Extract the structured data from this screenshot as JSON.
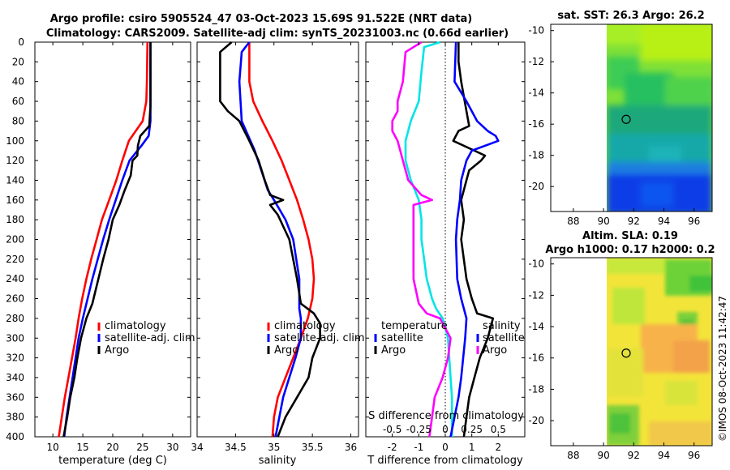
{
  "title_line1": "Argo profile: csiro 5905524_47 03-Oct-2023 15.69S 91.522E (NRT data)",
  "title_line2": "Climatology: CARS2009. Satellite-adj clim: synTS_20231003.nc (0.66d earlier)",
  "copyright": "©IMOS 08-Oct-2023 11:42:47",
  "colors": {
    "climatology": "#ff0000",
    "satellite": "#0000ff",
    "argo": "#000000",
    "temp_diff": "#00e5e5",
    "sal_diff": "#ff00ff"
  },
  "legend_left": [
    "climatology",
    "satellite-adj. clim",
    "Argo"
  ],
  "legend_diff_temp": [
    "temperature",
    "satellite",
    "Argo"
  ],
  "legend_diff_sal": [
    "salinity",
    "satellite",
    "Argo"
  ],
  "chart_data": [
    {
      "id": "temperature",
      "type": "line",
      "xlabel": "temperature (deg C)",
      "ylabel": "",
      "xlim": [
        7,
        33
      ],
      "ylim": [
        0,
        400
      ],
      "xticks": [
        10,
        15,
        20,
        25,
        30
      ],
      "yticks": [
        0,
        20,
        40,
        60,
        80,
        100,
        120,
        140,
        160,
        180,
        200,
        220,
        240,
        260,
        280,
        300,
        320,
        340,
        360,
        380,
        400
      ],
      "series": [
        {
          "name": "climatology",
          "color": "#ff0000",
          "depth": [
            0,
            40,
            60,
            80,
            100,
            120,
            140,
            160,
            180,
            200,
            220,
            240,
            260,
            280,
            300,
            320,
            340,
            360,
            380,
            400
          ],
          "values": [
            25.8,
            25.7,
            25.6,
            25.0,
            22.7,
            21.6,
            20.6,
            19.4,
            18.2,
            17.3,
            16.4,
            15.6,
            14.9,
            14.3,
            13.8,
            13.2,
            12.6,
            12.0,
            11.5,
            11.0
          ]
        },
        {
          "name": "satellite-adj. clim",
          "color": "#0000ff",
          "depth": [
            0,
            40,
            80,
            95,
            105,
            120,
            140,
            160,
            180,
            200,
            220,
            240,
            260,
            280,
            300,
            320,
            340,
            360,
            380,
            400
          ],
          "values": [
            26.3,
            26.3,
            26.3,
            26.0,
            24.8,
            22.8,
            21.6,
            20.5,
            19.4,
            18.4,
            17.5,
            16.6,
            15.8,
            15.0,
            14.3,
            13.8,
            13.3,
            12.8,
            12.3,
            11.9
          ]
        },
        {
          "name": "Argo",
          "color": "#000000",
          "depth": [
            0,
            65,
            85,
            95,
            105,
            115,
            120,
            135,
            150,
            165,
            180,
            200,
            220,
            240,
            250,
            265,
            280,
            300,
            320,
            340,
            360,
            380,
            400
          ],
          "values": [
            26.3,
            26.3,
            26.1,
            24.6,
            24.2,
            24.1,
            23.3,
            23.0,
            22.0,
            21.1,
            20.0,
            19.3,
            18.4,
            17.6,
            17.2,
            16.6,
            15.6,
            14.7,
            14.1,
            13.6,
            12.9,
            12.4,
            11.8
          ]
        }
      ]
    },
    {
      "id": "salinity",
      "type": "line",
      "xlabel": "salinity",
      "ylabel": "",
      "xlim": [
        34,
        36.1
      ],
      "ylim": [
        0,
        400
      ],
      "xticks": [
        34,
        34.5,
        35,
        35.5,
        36
      ],
      "series": [
        {
          "name": "climatology",
          "color": "#ff0000",
          "depth": [
            0,
            40,
            60,
            80,
            100,
            120,
            140,
            160,
            180,
            200,
            220,
            240,
            260,
            280,
            300,
            320,
            340,
            360,
            380,
            400
          ],
          "values": [
            34.68,
            34.68,
            34.73,
            34.85,
            34.98,
            35.1,
            35.2,
            35.3,
            35.38,
            35.45,
            35.5,
            35.52,
            35.5,
            35.44,
            35.35,
            35.25,
            35.15,
            35.05,
            35.0,
            34.98
          ]
        },
        {
          "name": "satellite-adj. clim",
          "color": "#0000ff",
          "depth": [
            0,
            10,
            40,
            80,
            110,
            150,
            160,
            180,
            200,
            240,
            270,
            280,
            300,
            320,
            340,
            360,
            380,
            400
          ],
          "values": [
            34.68,
            34.58,
            34.55,
            34.58,
            34.75,
            34.92,
            35.0,
            35.15,
            35.25,
            35.33,
            35.33,
            35.35,
            35.35,
            35.28,
            35.2,
            35.12,
            35.07,
            35.02
          ]
        },
        {
          "name": "Argo",
          "color": "#000000",
          "depth": [
            0,
            10,
            30,
            60,
            70,
            80,
            100,
            120,
            140,
            155,
            160,
            165,
            175,
            200,
            240,
            265,
            275,
            285,
            300,
            320,
            340,
            360,
            380,
            400
          ],
          "values": [
            34.45,
            34.3,
            34.3,
            34.3,
            34.4,
            34.55,
            34.68,
            34.8,
            34.88,
            34.95,
            35.12,
            34.95,
            35.05,
            35.2,
            35.3,
            35.35,
            35.52,
            35.6,
            35.6,
            35.5,
            35.45,
            35.3,
            35.15,
            35.05
          ]
        }
      ]
    },
    {
      "id": "differences",
      "type": "line",
      "xlabel": "T difference from climatology",
      "x2label": "S difference from climatology",
      "xlim": [
        -3,
        3
      ],
      "ylim": [
        0,
        400
      ],
      "xticks": [
        -2,
        -1,
        0,
        1,
        2
      ],
      "x2ticks": [
        "-0.5",
        "-0.25",
        "0",
        "0.25",
        "0.5"
      ],
      "series": [
        {
          "name": "temperature satellite",
          "color": "#00e5e5",
          "depth": [
            0,
            5,
            30,
            60,
            80,
            100,
            120,
            140,
            160,
            180,
            200,
            220,
            240,
            260,
            270,
            280,
            300,
            320,
            340,
            360,
            380,
            400
          ],
          "values": [
            -0.2,
            -0.8,
            -0.9,
            -1.0,
            -1.3,
            -1.5,
            -1.5,
            -1.3,
            -1.0,
            -0.9,
            -0.9,
            -0.8,
            -0.7,
            -0.5,
            -0.35,
            -0.1,
            0.1,
            0.15,
            0.2,
            0.25,
            0.25,
            0.25
          ]
        },
        {
          "name": "temperature Argo",
          "color": "#000000",
          "depth": [
            0,
            20,
            40,
            70,
            85,
            90,
            100,
            115,
            120,
            130,
            140,
            160,
            180,
            200,
            240,
            260,
            275,
            280,
            300,
            320,
            340,
            360,
            380,
            400
          ],
          "values": [
            0.5,
            0.5,
            0.6,
            0.8,
            0.9,
            0.5,
            0.3,
            1.5,
            1.35,
            0.9,
            0.8,
            0.6,
            0.7,
            0.6,
            0.8,
            1.0,
            1.2,
            1.8,
            1.6,
            1.3,
            1.1,
            0.9,
            0.8,
            0.7
          ]
        },
        {
          "name": "salinity satellite",
          "color": "#0000ff",
          "depth": [
            0,
            40,
            60,
            80,
            90,
            95,
            100,
            110,
            120,
            140,
            160,
            180,
            200,
            240,
            260,
            280,
            300,
            340,
            360,
            380,
            400
          ],
          "values": [
            0.4,
            0.35,
            0.8,
            1.2,
            1.6,
            1.9,
            2.0,
            1.0,
            0.8,
            0.6,
            0.55,
            0.45,
            0.4,
            0.45,
            0.6,
            0.8,
            0.75,
            0.6,
            0.5,
            0.35,
            0.2
          ]
        },
        {
          "name": "salinity Argo",
          "color": "#ff00ff",
          "depth": [
            0,
            10,
            40,
            60,
            70,
            80,
            90,
            100,
            120,
            140,
            155,
            160,
            165,
            200,
            240,
            265,
            275,
            280,
            300,
            320,
            340,
            360,
            380,
            400
          ],
          "values": [
            -0.9,
            -1.5,
            -1.6,
            -1.8,
            -1.8,
            -2.0,
            -2.0,
            -1.8,
            -1.6,
            -1.4,
            -0.9,
            -0.5,
            -1.2,
            -1.2,
            -1.2,
            -1.0,
            -0.7,
            -0.2,
            0.2,
            0.1,
            -0.1,
            -0.4,
            -0.5,
            -0.6
          ]
        }
      ]
    },
    {
      "id": "sst_map",
      "type": "heatmap",
      "title": "sat. SST: 26.3 Argo: 26.2",
      "xlim": [
        86.5,
        97.2
      ],
      "ylim": [
        -21.6,
        -9.6
      ],
      "xticks": [
        88,
        90,
        92,
        94,
        96
      ],
      "yticks": [
        -10,
        -12,
        -14,
        -16,
        -18,
        -20
      ],
      "marker": {
        "lon": 91.5,
        "lat": -15.69
      },
      "data_extent_lon": [
        90,
        97.2
      ]
    },
    {
      "id": "sla_map",
      "type": "heatmap",
      "title_line1": "Altim. SLA: 0.19",
      "title_line2": "Argo h1000: 0.17 h2000: 0.2",
      "xlim": [
        86.5,
        97.2
      ],
      "ylim": [
        -21.6,
        -9.6
      ],
      "xticks": [
        88,
        90,
        92,
        94,
        96
      ],
      "yticks": [
        -10,
        -12,
        -14,
        -16,
        -18,
        -20
      ],
      "marker": {
        "lon": 91.5,
        "lat": -15.69
      },
      "data_extent_lon": [
        90,
        97.2
      ]
    }
  ]
}
